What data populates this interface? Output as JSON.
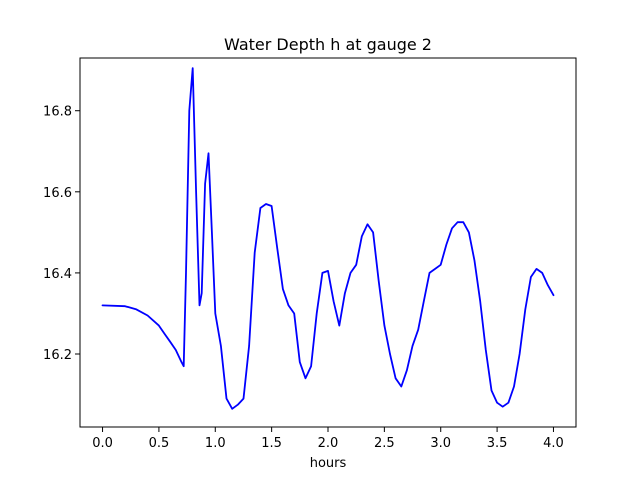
{
  "chart_data": {
    "type": "line",
    "title": "Water Depth h at gauge 2",
    "xlabel": "hours",
    "ylabel": "",
    "xlim": [
      -0.2,
      4.2
    ],
    "ylim": [
      16.02,
      16.93
    ],
    "xticks": [
      0.0,
      0.5,
      1.0,
      1.5,
      2.0,
      2.5,
      3.0,
      3.5,
      4.0
    ],
    "xtick_labels": [
      "0.0",
      "0.5",
      "1.0",
      "1.5",
      "2.0",
      "2.5",
      "3.0",
      "3.5",
      "4.0"
    ],
    "yticks": [
      16.2,
      16.4,
      16.6,
      16.8
    ],
    "ytick_labels": [
      "16.2",
      "16.4",
      "16.6",
      "16.8"
    ],
    "grid": false,
    "legend": false,
    "series": [
      {
        "color": "#0000ff",
        "x": [
          0.0,
          0.2,
          0.3,
          0.4,
          0.5,
          0.55,
          0.6,
          0.65,
          0.7,
          0.72,
          0.74,
          0.77,
          0.8,
          0.83,
          0.86,
          0.88,
          0.91,
          0.94,
          0.97,
          1.0,
          1.05,
          1.1,
          1.15,
          1.2,
          1.25,
          1.3,
          1.35,
          1.4,
          1.45,
          1.5,
          1.55,
          1.6,
          1.65,
          1.7,
          1.75,
          1.8,
          1.85,
          1.9,
          1.95,
          2.0,
          2.05,
          2.1,
          2.15,
          2.2,
          2.25,
          2.3,
          2.35,
          2.4,
          2.45,
          2.5,
          2.55,
          2.6,
          2.65,
          2.7,
          2.75,
          2.8,
          2.85,
          2.9,
          2.95,
          3.0,
          3.05,
          3.1,
          3.15,
          3.2,
          3.25,
          3.3,
          3.35,
          3.4,
          3.45,
          3.5,
          3.55,
          3.6,
          3.65,
          3.7,
          3.75,
          3.8,
          3.85,
          3.9,
          3.95,
          4.0
        ],
        "y": [
          16.32,
          16.318,
          16.31,
          16.295,
          16.27,
          16.25,
          16.23,
          16.21,
          16.18,
          16.17,
          16.4,
          16.8,
          16.905,
          16.6,
          16.32,
          16.35,
          16.62,
          16.695,
          16.5,
          16.3,
          16.22,
          16.09,
          16.065,
          16.075,
          16.09,
          16.22,
          16.45,
          16.56,
          16.57,
          16.565,
          16.46,
          16.36,
          16.32,
          16.3,
          16.18,
          16.14,
          16.17,
          16.3,
          16.4,
          16.405,
          16.33,
          16.27,
          16.35,
          16.4,
          16.42,
          16.49,
          16.52,
          16.5,
          16.38,
          16.27,
          16.2,
          16.14,
          16.12,
          16.16,
          16.22,
          16.26,
          16.33,
          16.4,
          16.41,
          16.42,
          16.47,
          16.51,
          16.525,
          16.525,
          16.5,
          16.43,
          16.33,
          16.21,
          16.11,
          16.08,
          16.07,
          16.08,
          16.12,
          16.2,
          16.31,
          16.39,
          16.41,
          16.4,
          16.37,
          16.345
        ]
      }
    ]
  }
}
